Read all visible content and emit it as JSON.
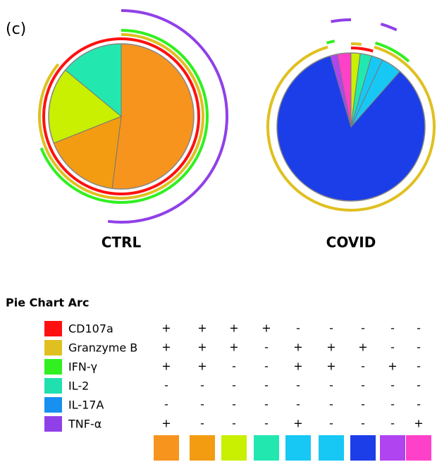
{
  "panel_label": "(c)",
  "chart_data": {
    "type": "pie",
    "pies": [
      {
        "title": "CTRL",
        "values": [
          52,
          17,
          17,
          14,
          0,
          0,
          0,
          0,
          0
        ]
      },
      {
        "title": "COVID",
        "values": [
          0,
          0,
          2,
          2.5,
          2.5,
          4.5,
          84,
          1.5,
          3
        ]
      }
    ],
    "slice_colors": [
      "#f7941d",
      "#f39c12",
      "#c8f000",
      "#22e8b0",
      "#18c8f4",
      "#18c8f4",
      "#1c3ee8",
      "#b044f0",
      "#ff40c8"
    ],
    "legend_title": "Pie Chart Arc",
    "arcs": [
      {
        "name": "CD107a",
        "color": "#ff1010",
        "signs": [
          "+",
          "+",
          "+",
          "+",
          "-",
          "-",
          "-",
          "-",
          "-"
        ]
      },
      {
        "name": "Granzyme B",
        "color": "#e0c020",
        "signs": [
          "+",
          "+",
          "+",
          "-",
          "+",
          "+",
          "+",
          "-",
          "-"
        ]
      },
      {
        "name": "IFN-γ",
        "color": "#30f020",
        "signs": [
          "+",
          "+",
          "-",
          "-",
          "+",
          "+",
          "-",
          "+",
          "-"
        ]
      },
      {
        "name": "IL-2",
        "color": "#20e0b0",
        "signs": [
          "-",
          "-",
          "-",
          "-",
          "-",
          "-",
          "-",
          "-",
          "-"
        ]
      },
      {
        "name": "IL-17A",
        "color": "#1890f0",
        "signs": [
          "-",
          "-",
          "-",
          "-",
          "-",
          "-",
          "-",
          "-",
          "-"
        ]
      },
      {
        "name": "TNF-α",
        "color": "#9040e8",
        "signs": [
          "+",
          "-",
          "-",
          "-",
          "+",
          "-",
          "-",
          "-",
          "+"
        ]
      }
    ]
  }
}
